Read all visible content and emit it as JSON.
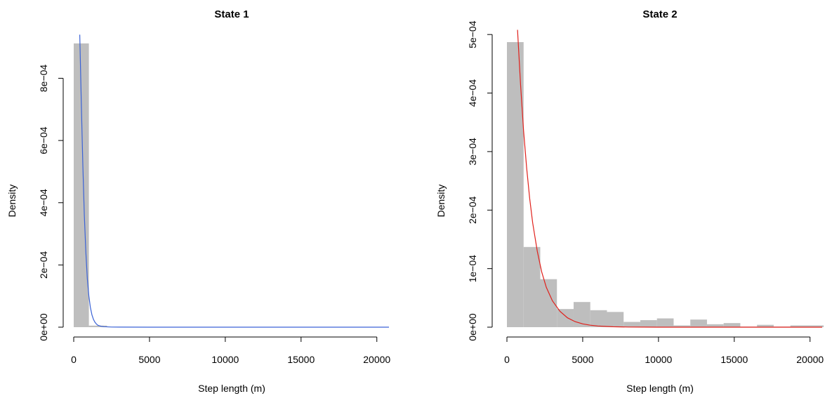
{
  "chart_data": [
    {
      "type": "histogram",
      "title": "State 1",
      "xlabel": "Step length (m)",
      "ylabel": "Density",
      "xlim": [
        0,
        20800
      ],
      "ylim": [
        0,
        0.00095
      ],
      "xticks": [
        0,
        5000,
        10000,
        15000,
        20000
      ],
      "xtick_labels": [
        "0",
        "5000",
        "10000",
        "15000",
        "20000"
      ],
      "yticks": [
        0,
        0.0002,
        0.0004,
        0.0006,
        0.0008
      ],
      "ytick_labels": [
        "0e+00",
        "2e−04",
        "4e−04",
        "6e−04",
        "8e−04"
      ],
      "bar_color": "#bebebe",
      "line_color": "#3a62d6",
      "bins": [
        {
          "x0": 0,
          "x1": 1000,
          "density": 0.000912
        },
        {
          "x0": 1000,
          "x1": 2200,
          "density": 5e-06
        }
      ],
      "curve": {
        "type": "density",
        "x": [
          400,
          500,
          600,
          700,
          800,
          900,
          1000,
          1100,
          1200,
          1300,
          1400,
          1500,
          1600,
          1800,
          2000,
          2500,
          3000,
          5000,
          10000,
          15000,
          20800
        ],
        "y": [
          0.00094,
          0.00072,
          0.00052,
          0.00036,
          0.00024,
          0.000155,
          0.0001,
          6.4e-05,
          4e-05,
          2.5e-05,
          1.6e-05,
          1e-05,
          6e-06,
          3e-06,
          1.5e-06,
          5e-07,
          2e-07,
          0,
          0,
          0,
          0
        ]
      }
    },
    {
      "type": "histogram",
      "title": "State 2",
      "xlabel": "Step length (m)",
      "ylabel": "Density",
      "xlim": [
        0,
        20800
      ],
      "ylim": [
        0,
        0.000505
      ],
      "xticks": [
        0,
        5000,
        10000,
        15000,
        20000
      ],
      "xtick_labels": [
        "0",
        "5000",
        "10000",
        "15000",
        "20000"
      ],
      "yticks": [
        0,
        0.0001,
        0.0002,
        0.0003,
        0.0004,
        0.0005
      ],
      "ytick_labels": [
        "0e+00",
        "1e−04",
        "2e−04",
        "3e−04",
        "4e−04",
        "5e−04"
      ],
      "bar_color": "#bebebe",
      "line_color": "#e0201b",
      "bins": [
        {
          "x0": 0,
          "x1": 1100,
          "density": 0.000487
        },
        {
          "x0": 1100,
          "x1": 2200,
          "density": 0.000137
        },
        {
          "x0": 2200,
          "x1": 3300,
          "density": 8.2e-05
        },
        {
          "x0": 3300,
          "x1": 4400,
          "density": 3.1e-05
        },
        {
          "x0": 4400,
          "x1": 5500,
          "density": 4.3e-05
        },
        {
          "x0": 5500,
          "x1": 6600,
          "density": 2.9e-05
        },
        {
          "x0": 6600,
          "x1": 7700,
          "density": 2.6e-05
        },
        {
          "x0": 7700,
          "x1": 8800,
          "density": 9e-06
        },
        {
          "x0": 8800,
          "x1": 9900,
          "density": 1.2e-05
        },
        {
          "x0": 9900,
          "x1": 11000,
          "density": 1.5e-05
        },
        {
          "x0": 11000,
          "x1": 12100,
          "density": 3e-06
        },
        {
          "x0": 12100,
          "x1": 13200,
          "density": 1.3e-05
        },
        {
          "x0": 13200,
          "x1": 14300,
          "density": 5e-06
        },
        {
          "x0": 14300,
          "x1": 15400,
          "density": 7e-06
        },
        {
          "x0": 15400,
          "x1": 16500,
          "density": 1e-06
        },
        {
          "x0": 16500,
          "x1": 17600,
          "density": 4e-06
        },
        {
          "x0": 17600,
          "x1": 18700,
          "density": 1e-06
        },
        {
          "x0": 18700,
          "x1": 20900,
          "density": 3e-06
        }
      ],
      "curve": {
        "type": "density",
        "x": [
          700,
          900,
          1100,
          1300,
          1500,
          1700,
          2000,
          2300,
          2600,
          3000,
          3500,
          4000,
          4500,
          5000,
          5500,
          6000,
          7000,
          8000,
          9000,
          10000,
          12000,
          15000,
          20800
        ],
        "y": [
          0.000508,
          0.000415,
          0.000336,
          0.000272,
          0.00022,
          0.000178,
          0.00013,
          9.4e-05,
          6.8e-05,
          4.5e-05,
          2.7e-05,
          1.6e-05,
          9.5e-06,
          5.6e-06,
          3.3e-06,
          2e-06,
          7e-07,
          2.5e-07,
          9e-08,
          3e-08,
          0,
          0,
          0
        ]
      }
    }
  ]
}
